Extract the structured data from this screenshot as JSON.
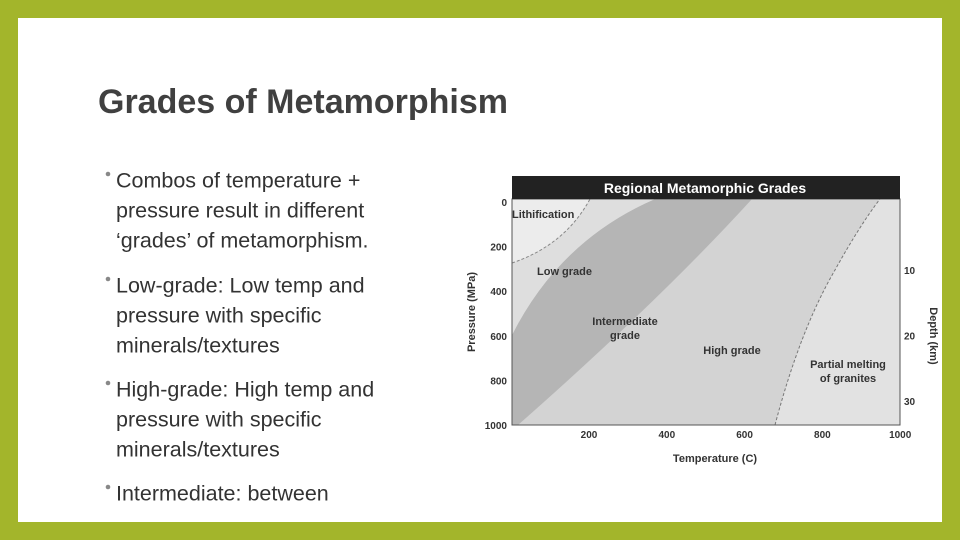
{
  "slide": {
    "title": "Grades of Metamorphism",
    "bullets": [
      [
        "Combos of temperature +",
        "pressure result in different",
        "‘grades’ of metamorphism."
      ],
      [
        "Low-grade:  Low temp and",
        "pressure with specific",
        "minerals/textures"
      ],
      [
        "High-grade:  High temp and",
        "pressure with specific",
        "minerals/textures"
      ],
      [
        "Intermediate:  between"
      ]
    ]
  },
  "figure": {
    "title": "Regional Metamorphic Grades",
    "x_label": "Temperature (C)",
    "y_label": "Pressure (MPa)",
    "y2_label": "Depth (km)",
    "x_ticks": [
      200,
      400,
      600,
      800,
      1000
    ],
    "y_ticks": [
      0,
      200,
      400,
      600,
      800,
      1000
    ],
    "y2_ticks": [
      10,
      20,
      30
    ],
    "regions": {
      "lithification": "Lithification",
      "low": "Low grade",
      "intermediate": [
        "Intermediate",
        "grade"
      ],
      "high": "High grade",
      "melting": [
        "Partial melting",
        "of granites"
      ]
    }
  }
}
